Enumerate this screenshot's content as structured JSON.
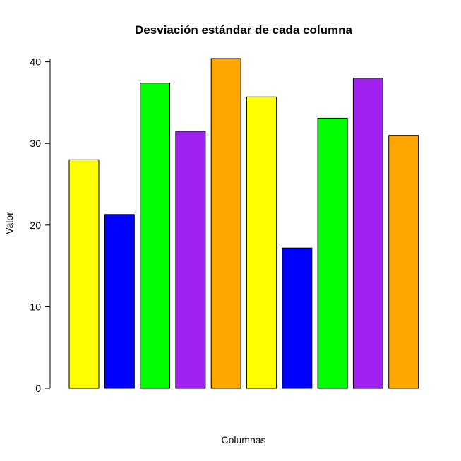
{
  "chart_data": {
    "type": "bar",
    "title": "Desviación estándar de cada columna",
    "xlabel": "Columnas",
    "ylabel": "Valor",
    "categories": [
      "",
      "",
      "",
      "",
      "",
      "",
      "",
      "",
      "",
      ""
    ],
    "values": [
      28.0,
      21.3,
      37.4,
      31.5,
      40.4,
      35.7,
      17.2,
      33.1,
      38.0,
      31.0
    ],
    "colors": [
      "#FFFF00",
      "#0000FF",
      "#00FF00",
      "#A020F0",
      "#FFA500",
      "#FFFF00",
      "#0000FF",
      "#00FF00",
      "#A020F0",
      "#FFA500"
    ],
    "bar_border_color": "#000000",
    "ylim": [
      0,
      40.4
    ],
    "yticks": [
      0,
      10,
      20,
      30,
      40
    ],
    "ytick_labels": [
      "0",
      "10",
      "20",
      "30",
      "40"
    ],
    "grid": false,
    "legend": "none"
  }
}
